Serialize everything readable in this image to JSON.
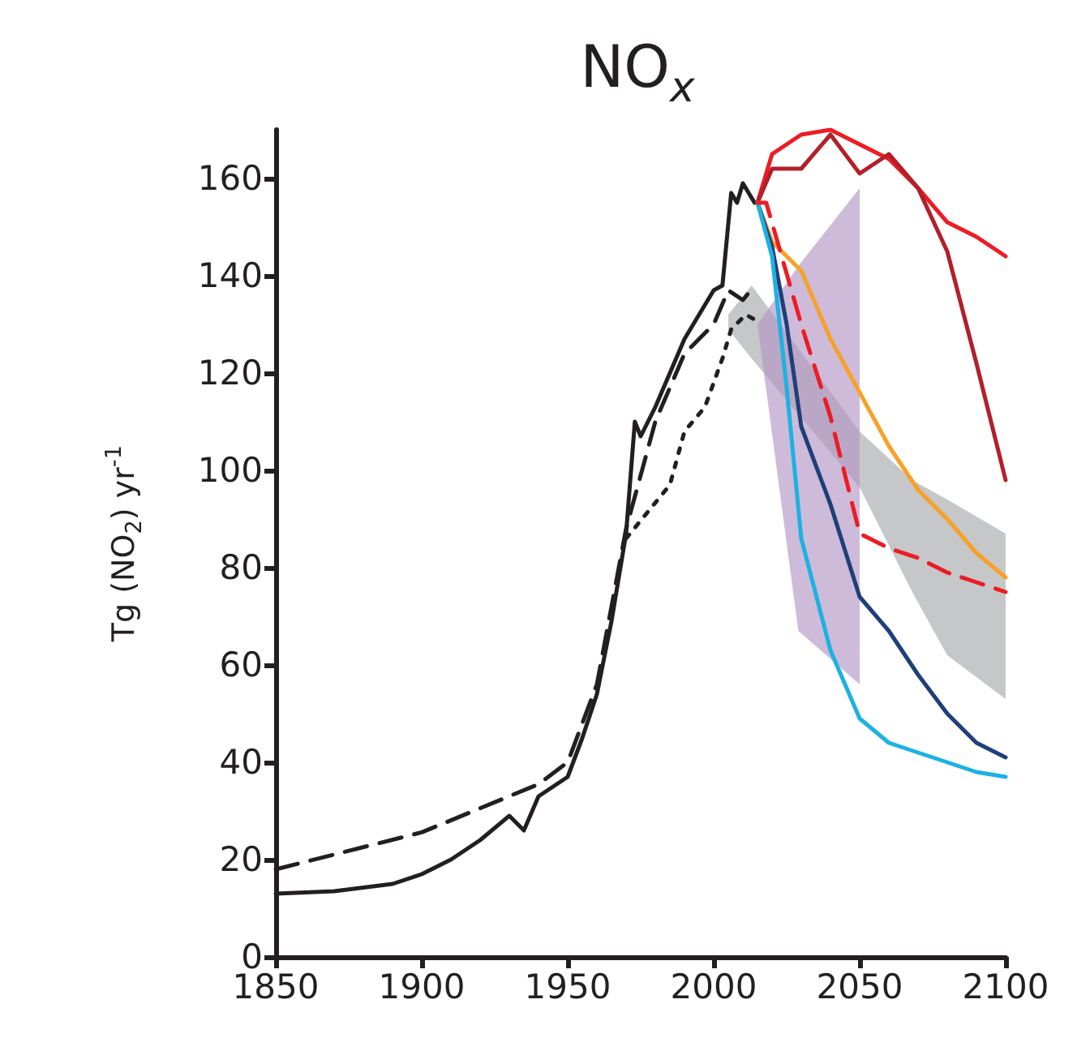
{
  "chart_data": {
    "type": "line",
    "title": "NO$_{x}$",
    "ylabel": "Tg (NO$_{2}$) yr$^{-1}$",
    "xlim": [
      1850,
      2100
    ],
    "xticks": [
      1850,
      1900,
      1950,
      2000,
      2050,
      2100
    ],
    "ylim": [
      0,
      170
    ],
    "yticks": [
      0,
      20,
      40,
      60,
      80,
      100,
      120,
      140,
      160
    ],
    "grid": false,
    "marker": "none",
    "series": [
      {
        "type": "area",
        "color": "#a7a9ac",
        "x": [
          2005,
          2013,
          2050,
          2068,
          2080,
          2100
        ],
        "values": [
          null,
          null,
          null,
          null,
          null,
          null
        ],
        "lower": [
          129,
          123,
          96.5,
          75,
          62,
          53
        ],
        "upper": [
          132,
          138,
          108,
          98,
          94,
          87
        ]
      },
      {
        "type": "area",
        "color": "#b497c4",
        "x": [
          2015,
          2029,
          2050
        ],
        "values": [
          null,
          null,
          null
        ],
        "lower": [
          130,
          67,
          56
        ],
        "upper": [
          130,
          142,
          158
        ]
      },
      {
        "color": "#231f20",
        "line_style": "solid",
        "x": [
          1850,
          1870,
          1890,
          1900,
          1910,
          1920,
          1930,
          1935,
          1940,
          1945,
          1950,
          1955,
          1960,
          1965,
          1970,
          1973,
          1975,
          1980,
          1985,
          1990,
          1995,
          2000,
          2003,
          2006,
          2008,
          2010,
          2012,
          2014
        ],
        "values": [
          13,
          13.5,
          15,
          17,
          20,
          24,
          29,
          26,
          33,
          35,
          37,
          45,
          54,
          69,
          87,
          110,
          107,
          113,
          120,
          127,
          132,
          137,
          138,
          157,
          155,
          159,
          157,
          155
        ]
      },
      {
        "color": "#231f20",
        "line_style": "dashed",
        "x": [
          1850,
          1900,
          1940,
          1950,
          1960,
          1970,
          1980,
          1990,
          2000,
          2005,
          2010,
          2014
        ],
        "values": [
          18,
          25.6,
          35.5,
          40,
          56,
          88,
          110,
          124,
          130,
          137,
          135,
          138
        ]
      },
      {
        "color": "#231f20",
        "line_style": "dotted",
        "x": [
          1970,
          1985,
          1990,
          1997,
          2003,
          2006,
          2011,
          2014
        ],
        "values": [
          86,
          97,
          108,
          113,
          123,
          129,
          132,
          131
        ]
      },
      {
        "color": "#ed1c24",
        "line_style": "solid",
        "x": [
          2015,
          2020,
          2030,
          2040,
          2050,
          2060,
          2070,
          2080,
          2090,
          2100
        ],
        "values": [
          155,
          165,
          169,
          170,
          167,
          164,
          158,
          151,
          148,
          144
        ]
      },
      {
        "color": "#b2202a",
        "line_style": "solid",
        "x": [
          2015,
          2020,
          2030,
          2040,
          2050,
          2060,
          2070,
          2080,
          2090,
          2100
        ],
        "values": [
          155,
          162,
          162,
          169,
          161,
          165,
          158,
          145,
          122,
          98
        ]
      },
      {
        "color": "#f7a128",
        "line_style": "solid",
        "x": [
          2015,
          2020,
          2030,
          2040,
          2050,
          2060,
          2070,
          2080,
          2090,
          2100
        ],
        "values": [
          155,
          147,
          141,
          127,
          116,
          105,
          96,
          90,
          83,
          78
        ]
      },
      {
        "color": "#1f3f7a",
        "line_style": "solid",
        "x": [
          2015,
          2020,
          2025,
          2030,
          2040,
          2050,
          2060,
          2070,
          2080,
          2090,
          2100
        ],
        "values": [
          155,
          146,
          130,
          109,
          93,
          74,
          67,
          58,
          50,
          44,
          41
        ]
      },
      {
        "color": "#1cb2e2",
        "line_style": "solid",
        "x": [
          2015,
          2020,
          2025,
          2030,
          2040,
          2050,
          2060,
          2070,
          2080,
          2090,
          2100
        ],
        "values": [
          155,
          144,
          117,
          86,
          63,
          49,
          44,
          42,
          40,
          38,
          37
        ]
      },
      {
        "color": "#ed1c24",
        "line_style": "dashed",
        "x": [
          2015,
          2018,
          2030,
          2040,
          2050,
          2060,
          2070,
          2080,
          2090,
          2100
        ],
        "values": [
          155,
          155,
          130,
          111,
          87,
          84,
          82,
          79,
          77,
          75
        ]
      }
    ]
  }
}
